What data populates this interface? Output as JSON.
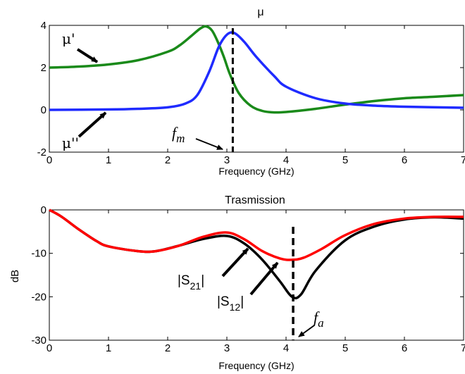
{
  "chart_data": [
    {
      "type": "line",
      "title": "μ",
      "xlabel": "Frequency (GHz)",
      "ylabel": "",
      "xlim": [
        0,
        7
      ],
      "ylim": [
        -2,
        4
      ],
      "xticks": [
        0,
        1,
        2,
        3,
        4,
        5,
        6,
        7
      ],
      "yticks": [
        -2,
        0,
        2,
        4
      ],
      "grid": false,
      "series": [
        {
          "name": "μ'",
          "color": "#1a8a1a",
          "x": [
            0,
            0.5,
            1.0,
            1.5,
            2.0,
            2.2,
            2.4,
            2.55,
            2.65,
            2.75,
            2.85,
            2.95,
            3.05,
            3.2,
            3.4,
            3.6,
            3.8,
            4.0,
            4.5,
            5.0,
            5.5,
            6.0,
            6.5,
            7.0
          ],
          "y": [
            2.0,
            2.05,
            2.15,
            2.35,
            2.75,
            3.05,
            3.5,
            3.85,
            3.95,
            3.75,
            3.2,
            2.5,
            1.7,
            0.8,
            0.2,
            -0.05,
            -0.12,
            -0.1,
            0.05,
            0.25,
            0.42,
            0.55,
            0.62,
            0.7
          ]
        },
        {
          "name": "μ''",
          "color": "#1f2bff",
          "x": [
            0,
            1.0,
            1.5,
            2.0,
            2.3,
            2.5,
            2.7,
            2.85,
            2.95,
            3.05,
            3.15,
            3.3,
            3.5,
            3.8,
            4.0,
            4.5,
            5.0,
            5.5,
            6.0,
            7.0
          ],
          "y": [
            0,
            0.02,
            0.05,
            0.12,
            0.3,
            0.7,
            1.8,
            2.9,
            3.4,
            3.65,
            3.6,
            3.2,
            2.5,
            1.6,
            1.1,
            0.55,
            0.3,
            0.2,
            0.15,
            0.1
          ]
        }
      ],
      "markers": [
        {
          "label": "f",
          "sub": "m",
          "x": 3.1
        }
      ],
      "annotations": [
        "μ'",
        "μ''",
        "f"
      ]
    },
    {
      "type": "line",
      "title": "Trasmission",
      "xlabel": "Frequency (GHz)",
      "ylabel": "dB",
      "xlim": [
        0,
        7
      ],
      "ylim": [
        -30,
        0
      ],
      "xticks": [
        0,
        1,
        2,
        3,
        4,
        5,
        6,
        7
      ],
      "yticks": [
        -30,
        -20,
        -10,
        0
      ],
      "grid": false,
      "series": [
        {
          "name": "|S21|",
          "color": "#000000",
          "x": [
            0,
            0.2,
            0.5,
            0.8,
            1.0,
            1.5,
            1.8,
            2.2,
            2.6,
            3.0,
            3.3,
            3.6,
            3.9,
            4.1,
            4.25,
            4.5,
            5.0,
            5.5,
            6.0,
            6.5,
            7.0
          ],
          "y": [
            0,
            -1.5,
            -4.5,
            -7.2,
            -8.4,
            -9.5,
            -9.5,
            -8.2,
            -6.7,
            -6.0,
            -7.8,
            -11.5,
            -16.5,
            -20.0,
            -19.5,
            -14.0,
            -7.0,
            -3.8,
            -2.2,
            -1.7,
            -2.0
          ]
        },
        {
          "name": "|S12|",
          "color": "#ff0000",
          "x": [
            0,
            0.2,
            0.5,
            0.8,
            1.0,
            1.5,
            1.8,
            2.2,
            2.6,
            3.0,
            3.3,
            3.6,
            3.9,
            4.1,
            4.3,
            4.6,
            5.0,
            5.5,
            6.0,
            6.5,
            7.0
          ],
          "y": [
            0,
            -1.5,
            -4.5,
            -7.2,
            -8.4,
            -9.5,
            -9.5,
            -8.2,
            -6.2,
            -5.2,
            -6.8,
            -9.5,
            -11.2,
            -11.5,
            -11.0,
            -9.0,
            -5.8,
            -3.2,
            -2.0,
            -1.6,
            -1.6
          ]
        }
      ],
      "markers": [
        {
          "label": "f",
          "sub": "a",
          "x": 4.12
        }
      ],
      "annotations": [
        "|S21|",
        "|S12|",
        "f"
      ]
    }
  ],
  "text": {
    "top_title": "μ",
    "bottom_title": "Trasmission",
    "top_xlabel": "Frequency (GHz)",
    "bottom_xlabel": "Frequency (GHz)",
    "bottom_ylabel": "dB",
    "mu_prime": "μ'",
    "mu_dprime": "μ''",
    "fm_main": "f",
    "fm_sub": "m",
    "fa_main": "f",
    "fa_sub": "a",
    "s21_pre": "|S",
    "s21_sub": "21",
    "s21_post": "|",
    "s12_pre": "|S",
    "s12_sub": "12",
    "s12_post": "|"
  }
}
